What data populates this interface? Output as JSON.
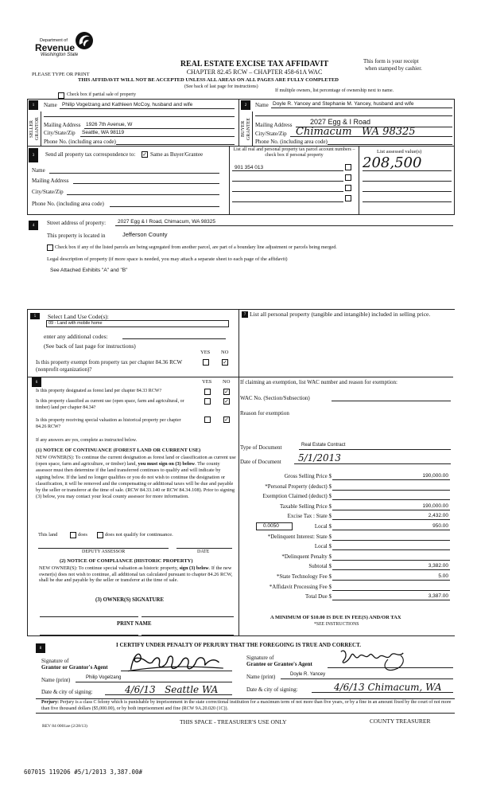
{
  "header": {
    "logo_text": [
      "Department of",
      "Revenue",
      "Washington State"
    ],
    "title": "REAL ESTATE EXCISE TAX AFFIDAVIT",
    "subtitle": "CHAPTER 82.45 RCW – CHAPTER 458-61A WAC",
    "receipt_note_1": "This form is your receipt",
    "receipt_note_2": "when stamped by cashier.",
    "please_type": "PLEASE TYPE OR PRINT",
    "warning": "THIS AFFIDAVIT WILL NOT BE ACCEPTED UNLESS ALL AREAS ON ALL PAGES ARE FULLY COMPLETED",
    "instructions_note": "(See back of last page for instructions)",
    "partial_sale_label": "Check box if partial sale of property",
    "multiple_owners_note": "If multiple owners, list percentage of ownership next to name."
  },
  "seller": {
    "number": "1",
    "side_label": "SELLER GRANTOR",
    "name_label": "Name",
    "name": "Philip Vogelzang and Kathleen McCoy, husband and wife",
    "mailing_label": "Mailing Address",
    "mailing": "1926 7th Avenue, W",
    "city_label": "City/State/Zip",
    "city": "Seattle, WA 98119",
    "phone_label": "Phone No. (including area code)"
  },
  "buyer": {
    "number": "2",
    "side_label": "BUYER GRANTEE",
    "name_label": "Name",
    "name": "Doyle R. Yancey and Stephanie M. Yancey, husband and wife",
    "mailing_label": "Mailing Address",
    "mailing": "2027 Egg & I Road",
    "city_label": "City/State/Zip",
    "city": "Chimacum   WA 98325",
    "phone_label": "Phone No. (including area code)"
  },
  "section3": {
    "number": "3",
    "send_label": "Send all property tax correspondence to:",
    "same_as_buyer_label": "Same as Buyer/Grantee",
    "same_as_buyer_checked": true,
    "name_label": "Name",
    "mailing_label": "Mailing Address",
    "city_label": "City/State/Zip",
    "phone_label": "Phone No. (including area code)",
    "parcel_header": "List all real and personal property tax parcel account numbers – check box if personal property",
    "parcels": [
      "901 354 013",
      "",
      "",
      ""
    ],
    "assessed_header": "List assessed value(s)",
    "assessed_value": "208,500"
  },
  "section4": {
    "number": "4",
    "street_label": "Street address of property:",
    "street": "2027 Egg & I Road, Chimacum, WA 98325",
    "located_label": "This property is located in",
    "county": "Jefferson County",
    "segregated_label": "Check box if any of the listed parcels are being segregated from another parcel, are part of a boundary line adjustment or parcels being merged.",
    "legal_label": "Legal description of property (if more space is needed, you may attach a separate sheet to each page of the affidavit)",
    "legal": "See Attached Exhibits \"A\" and \"B\""
  },
  "section5": {
    "number": "5",
    "land_use_label": "Select Land Use Code(s):",
    "land_use_value": "09 - Land with mobile home",
    "additional_label": "enter any additional codes:",
    "see_back": "(See back of last page for instructions)",
    "yes": "YES",
    "no": "NO",
    "exempt_question": "Is this property exempt from property tax per chapter 84.36 RCW (nonprofit organization)?",
    "exempt_answer": "NO"
  },
  "section6": {
    "number": "6",
    "yes": "YES",
    "no": "NO",
    "questions": [
      {
        "text": "Is this property designated as forest land per chapter 84.33 RCW?",
        "answer": "NO"
      },
      {
        "text": "Is this property classified as current use (open space, farm and agricultural, or timber) land per chapter 84.34?",
        "answer": "NO"
      },
      {
        "text": "Is this property receiving special valuation as historical property per chapter 84.26 RCW?",
        "answer": "NO"
      }
    ],
    "if_yes": "If any answers are yes, complete as instructed below.",
    "notice1_title": "(1) NOTICE OF CONTINUANCE  (FOREST LAND OR CURRENT USE)",
    "notice1_pre": "NEW OWNER(S): To continue the current designation as forest land or classification as current use (open space, farm and agriculture, or timber) land,",
    "notice1_bold": "you must sign on (3) below",
    "notice1_post": ". The county assessor must then determine if the land transferred continues to qualify and will indicate by signing below. If the land no longer qualifies or you do not wish to continue the designation or classification, it will be removed and the compensating or additional taxes will be due and payable by the seller or transferor at the time of sale. (RCW 84.33.140 or RCW 84.34.108). Prior to signing (3) below, you may contact your local county assessor for more information.",
    "this_land": "This land",
    "does": "does",
    "does_not": "does not qualify for continuance.",
    "deputy_assessor": "DEPUTY ASSESSOR",
    "date": "DATE",
    "notice2_title": "(2) NOTICE OF COMPLIANCE (HISTORIC PROPERTY)",
    "notice2_pre": "NEW OWNER(S): To continue special valuation as historic property,",
    "notice2_bold": "sign (3) below",
    "notice2_post": ". If the new owner(s) does not wish to continue, all additional tax calculated pursuant to chapter 84.26 RCW, shall be due and payable by the seller or transferor at the time of sale.",
    "owner_signature": "(3)  OWNER(S) SIGNATURE",
    "print_name": "PRINT NAME"
  },
  "section7": {
    "number": "7",
    "personal_property_label": "List all  personal property (tangible and intangible) included in selling price.",
    "exemption_label": "If claiming an exemption, list WAC number and reason for exemption:",
    "wac_label": "WAC No. (Section/Subsection)",
    "reason_label": "Reason for exemption",
    "doc_type_label": "Type of Document",
    "doc_type": "Real Estate Contract",
    "doc_date_label": "Date of Document",
    "doc_date": "5/1/2013",
    "local_rate": "0.0050",
    "amounts": [
      {
        "label": "Gross Selling Price $",
        "value": "190,000.00"
      },
      {
        "label": "*Personal Property (deduct) $",
        "value": ""
      },
      {
        "label": "Exemption Claimed (deduct) $",
        "value": ""
      },
      {
        "label": "Taxable Selling Price $",
        "value": "190,000.00"
      },
      {
        "label": "Excise Tax : State $",
        "value": "2,432.00"
      },
      {
        "label": "Local $",
        "value": "950.00"
      },
      {
        "label": "*Delinquent Interest: State $",
        "value": ""
      },
      {
        "label": "Local $",
        "value": ""
      },
      {
        "label": "*Delinquent Penalty $",
        "value": ""
      },
      {
        "label": "Subtotal $",
        "value": "3,382.00"
      },
      {
        "label": "*State Technology Fee $",
        "value": "5.00"
      },
      {
        "label": "*Affidavit Processing Fee $",
        "value": ""
      },
      {
        "label": "Total Due $",
        "value": "3,387.00"
      }
    ],
    "minimum_note": "A MINIMUM OF $10.00 IS DUE IN FEE(S) AND/OR TAX",
    "see_instructions": "*SEE INSTRUCTIONS"
  },
  "section8": {
    "number": "8",
    "certify": "I CERTIFY UNDER PENALTY OF PERJURY THAT THE FOREGOING IS TRUE AND CORRECT.",
    "grantor_sig_label_1": "Signature of",
    "grantor_sig_label_2": "Grantor or Grantor's Agent",
    "grantor_name_label": "Name (print)",
    "grantor_name": "Philip Vogelzang",
    "grantor_date_label": "Date & city of signing:",
    "grantor_date": "4/6/13   Seattle WA",
    "grantee_sig_label_1": "Signature of",
    "grantee_sig_label_2": "Grantee or Grantee's Agent",
    "grantee_name_label": "Name (print)",
    "grantee_name": "Doyle R. Yancey",
    "grantee_date_label": "Date & city of signing:",
    "grantee_date": "4/6/13 Chimacum, WA"
  },
  "footer": {
    "perjury_bold": "Perjury:",
    "perjury_text": " Perjury is a class C felony which is punishable by imprisonment in the state correctional institution for a maximum term of not more than five years, or by a fine in an amount fixed by the court of not more than five thousand dollars ($5,000.00), or by both imprisonment and fine (RCW 9A.20.020 (1C)).",
    "rev": "REV 84 0001ae (2/28/13)",
    "treasurer_space": "THIS SPACE - TREASURER'S USE ONLY",
    "county_treasurer": "COUNTY TREASURER",
    "stamp": "607015 119206 #5/1/2013 3,387.00#"
  }
}
